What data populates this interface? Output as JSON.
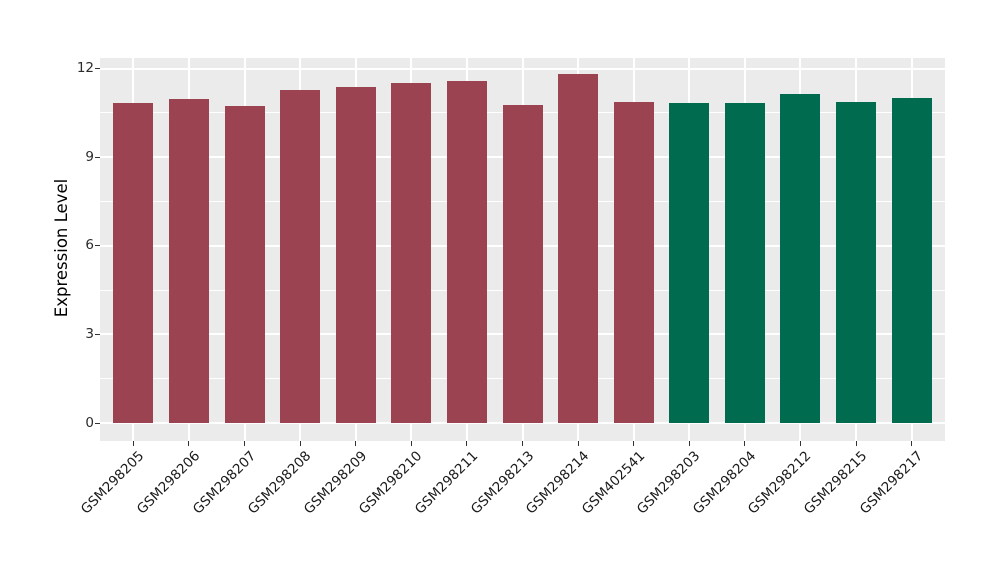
{
  "chart_data": {
    "type": "bar",
    "title": "",
    "xlabel": "",
    "ylabel": "Expression Level",
    "categories": [
      "GSM298205",
      "GSM298206",
      "GSM298207",
      "GSM298208",
      "GSM298209",
      "GSM298210",
      "GSM298211",
      "GSM298213",
      "GSM298214",
      "GSM402541",
      "GSM298203",
      "GSM298204",
      "GSM298212",
      "GSM298215",
      "GSM298217"
    ],
    "values": [
      10.85,
      10.97,
      10.75,
      11.28,
      11.39,
      11.5,
      11.59,
      10.78,
      11.83,
      10.88,
      10.85,
      10.85,
      11.15,
      10.88,
      11.02
    ],
    "bar_groups": [
      "red",
      "red",
      "red",
      "red",
      "red",
      "red",
      "red",
      "red",
      "red",
      "red",
      "green",
      "green",
      "green",
      "green",
      "green"
    ],
    "group_colors": {
      "red": "#9B4350",
      "green": "#006B4E"
    },
    "yticks": [
      "0",
      "3",
      "6",
      "9",
      "12"
    ],
    "ytick_values": [
      0,
      3,
      6,
      9,
      12
    ],
    "minor_ytick_values": [
      1.5,
      4.5,
      7.5,
      10.5
    ],
    "ylim": [
      0,
      12.4
    ],
    "x_label_rotation_deg": 45,
    "grid": "on",
    "legend_position": "none",
    "panel_background": "#EBEBEB",
    "gridline_color": "#FFFFFF",
    "axis_text_color": "#1A1A1A",
    "tick_mark_color": "#333333"
  }
}
